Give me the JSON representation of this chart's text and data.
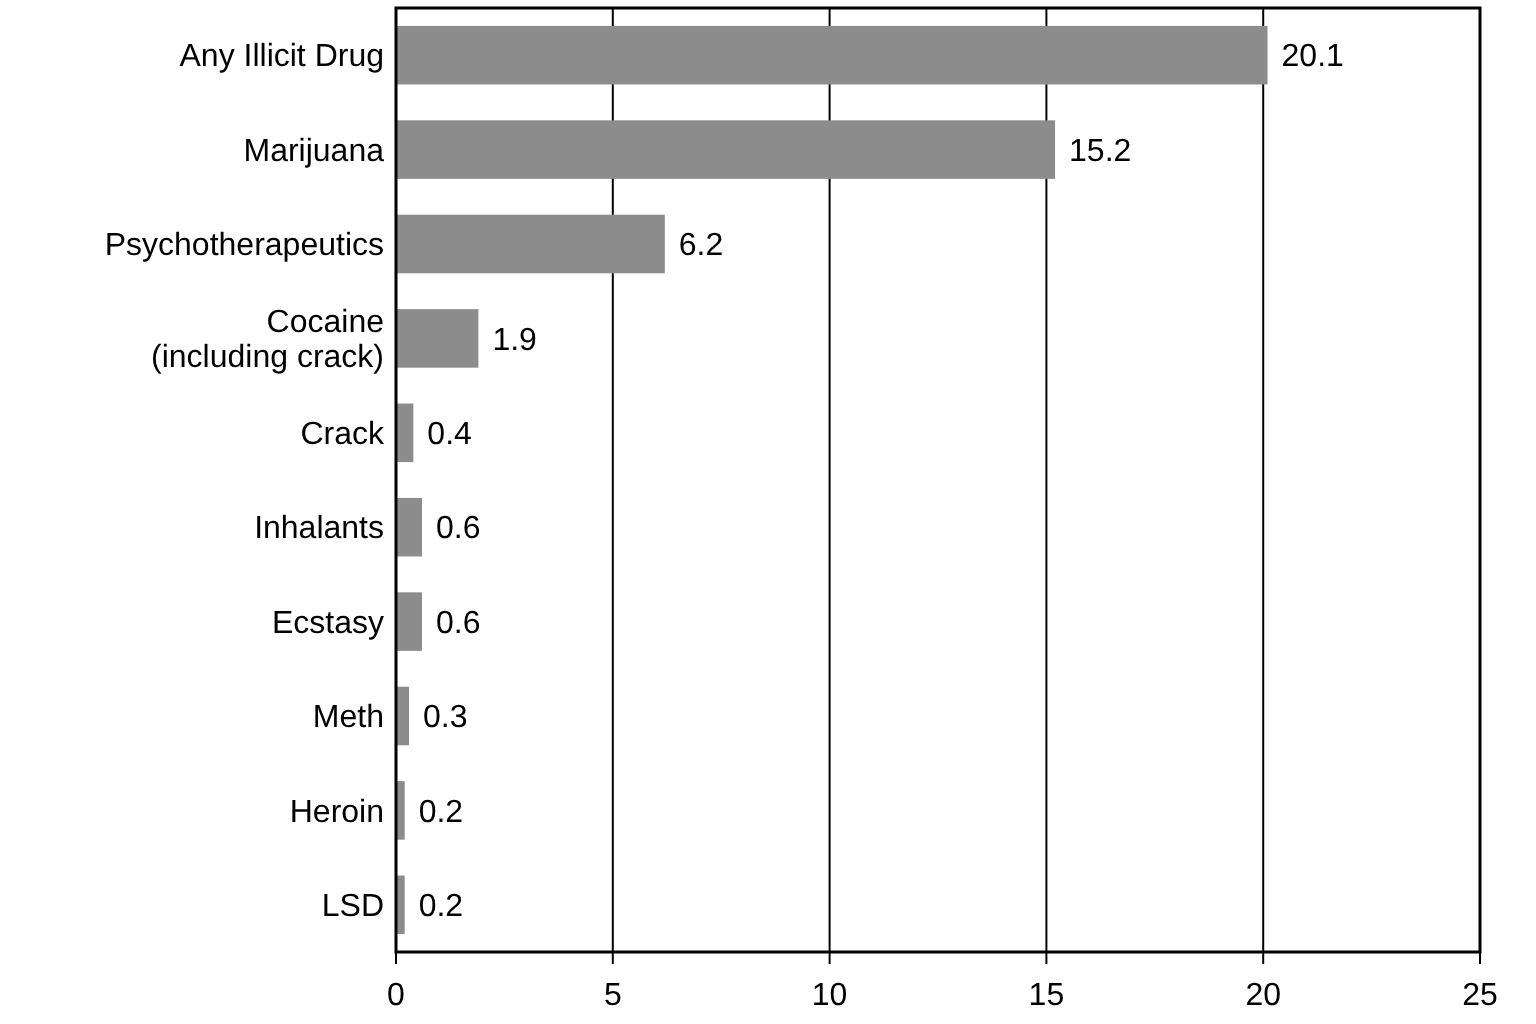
{
  "chart_data": {
    "type": "bar",
    "orientation": "horizontal",
    "categories": [
      "Any Illicit Drug",
      "Marijuana",
      "Psychotherapeutics",
      "Cocaine\n(including crack)",
      "Crack",
      "Inhalants",
      "Ecstasy",
      "Meth",
      "Heroin",
      "LSD"
    ],
    "values": [
      20.1,
      15.2,
      6.2,
      1.9,
      0.4,
      0.6,
      0.6,
      0.3,
      0.2,
      0.2
    ],
    "color": "#8c8c8c",
    "xlim": [
      0,
      25
    ],
    "xticks": [
      0,
      5,
      10,
      15,
      20,
      25
    ],
    "grid": "x",
    "data_labels": true
  }
}
